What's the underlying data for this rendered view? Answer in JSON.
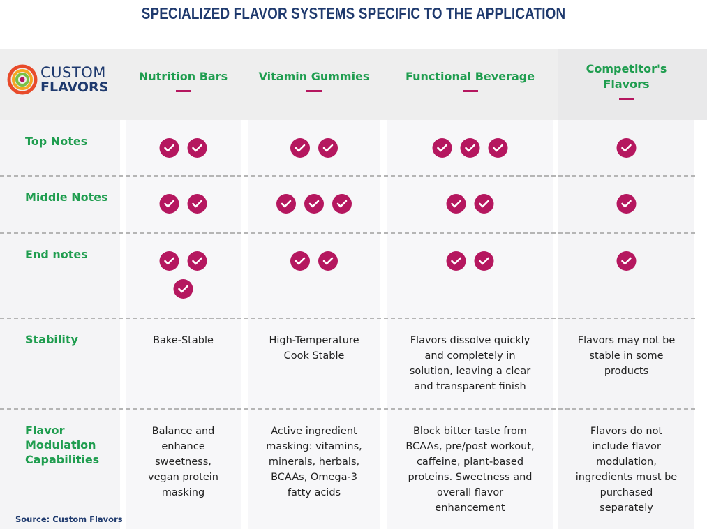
{
  "title": "SPECIALIZED FLAVOR SYSTEMS SPECIFIC TO THE APPLICATION",
  "logo": {
    "line1": "CUSTOM",
    "line2": "FLAVORS"
  },
  "columns": [
    "Nutrition Bars",
    "Vitamin Gummies",
    "Functional Beverage",
    "Competitor's Flavors"
  ],
  "rows": [
    {
      "label": "Top Notes",
      "cells": [
        {
          "checks": 2
        },
        {
          "checks": 2
        },
        {
          "checks": 3
        },
        {
          "checks": 1
        }
      ]
    },
    {
      "label": "Middle Notes",
      "cells": [
        {
          "checks": 2
        },
        {
          "checks": 3
        },
        {
          "checks": 2
        },
        {
          "checks": 1
        }
      ]
    },
    {
      "label": "End notes",
      "cells": [
        {
          "checks": 3
        },
        {
          "checks": 2
        },
        {
          "checks": 2
        },
        {
          "checks": 1
        }
      ]
    },
    {
      "label": "Stability",
      "cells": [
        {
          "text": "Bake-Stable"
        },
        {
          "text": "High-Temperature Cook Stable"
        },
        {
          "text": "Flavors dissolve quickly and completely in solution, leaving a clear and transparent finish"
        },
        {
          "text": "Flavors may not be stable in some products"
        }
      ]
    },
    {
      "label": "Flavor Modulation Capabilities",
      "cells": [
        {
          "text": "Balance and enhance sweetness, vegan protein masking"
        },
        {
          "text": "Active ingredient masking: vitamins, minerals, herbals, BCAAs, Omega-3 fatty acids"
        },
        {
          "text": "Block bitter taste from BCAAs, pre/post workout, caffeine, plant-based proteins. Sweetness and overall flavor enhancement"
        },
        {
          "text": "Flavors do not include flavor modulation, ingredients must be purchased separately"
        }
      ]
    }
  ],
  "source": "Source: Custom Flavors"
}
